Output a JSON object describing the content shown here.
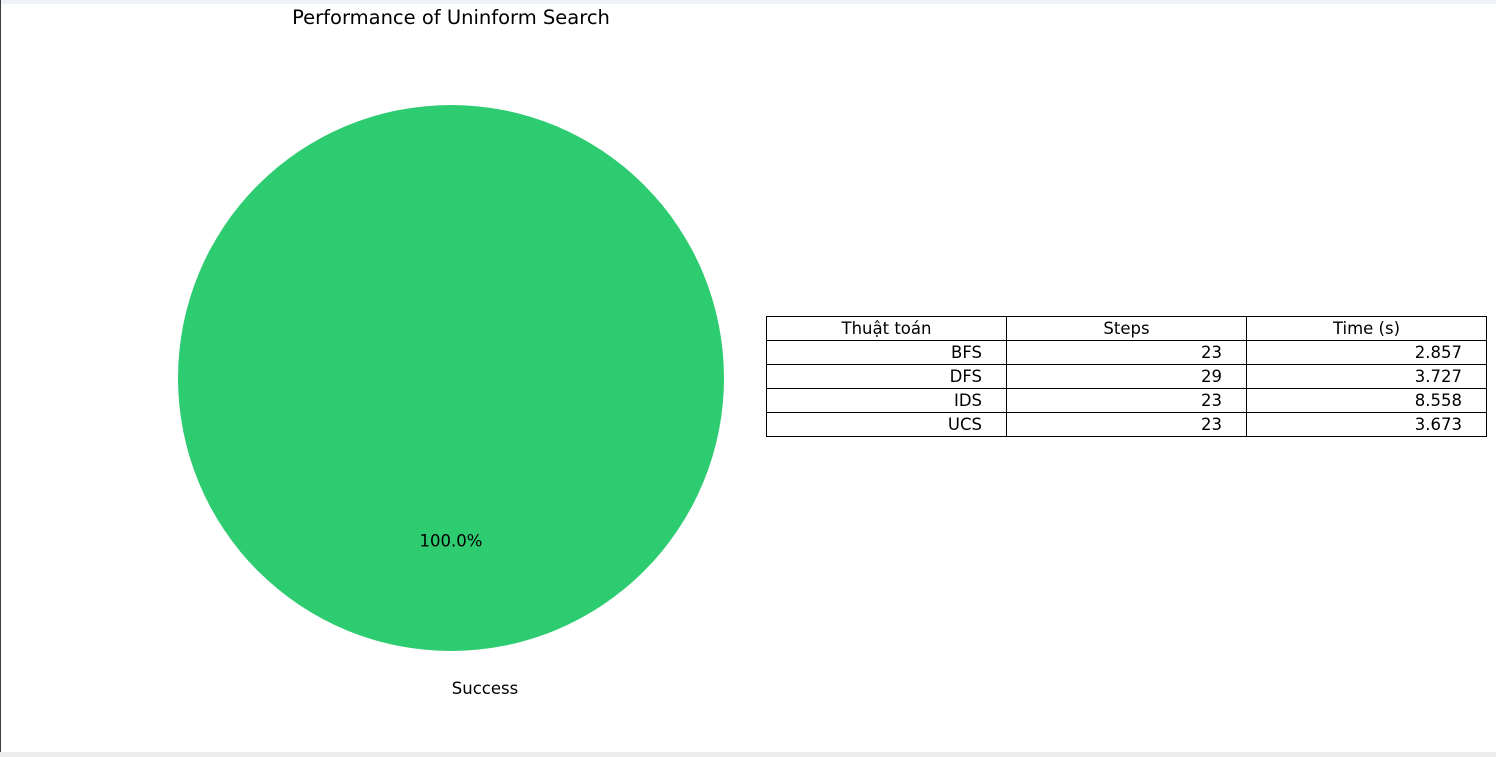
{
  "chart_data": {
    "type": "pie",
    "title": "Performance of Uninform Search",
    "labels": [
      "Success"
    ],
    "values": [
      100.0
    ],
    "autopct": [
      "100.0%"
    ],
    "colors": [
      "#2ecc71"
    ],
    "table": {
      "columns": [
        "Thuật toán",
        "Steps",
        "Time (s)"
      ],
      "rows": [
        [
          "BFS",
          "23",
          "2.857"
        ],
        [
          "DFS",
          "29",
          "3.727"
        ],
        [
          "IDS",
          "23",
          "8.558"
        ],
        [
          "UCS",
          "23",
          "3.673"
        ]
      ]
    }
  }
}
